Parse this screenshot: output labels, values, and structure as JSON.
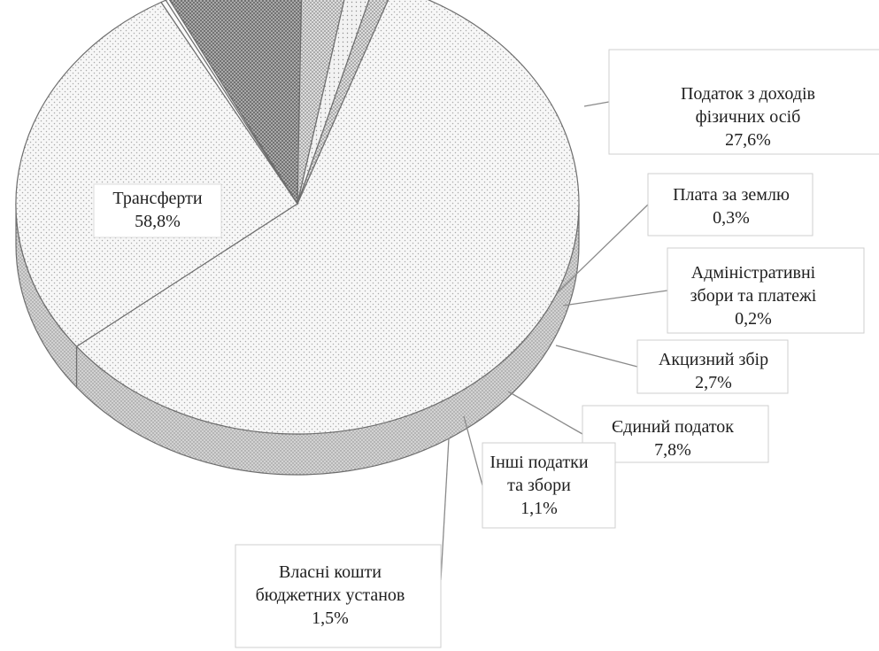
{
  "chart_data": {
    "type": "pie",
    "slices": [
      {
        "key": "transfers",
        "label_lines": [
          "Трансферти"
        ],
        "value_text": "58,8%",
        "value": 58.8,
        "pattern": "dots-light"
      },
      {
        "key": "pit",
        "label_lines": [
          "Податок з доходів",
          "фізичних осіб"
        ],
        "value_text": "27,6%",
        "value": 27.6,
        "pattern": "dots-light"
      },
      {
        "key": "land",
        "label_lines": [
          "Плата за землю"
        ],
        "value_text": "0,3%",
        "value": 0.3,
        "pattern": "plain"
      },
      {
        "key": "admin",
        "label_lines": [
          "Адміністративні",
          "збори та платежі"
        ],
        "value_text": "0,2%",
        "value": 0.2,
        "pattern": "plain"
      },
      {
        "key": "single",
        "label_lines": [
          "Єдиний податок"
        ],
        "value_text": "7,8%",
        "value": 7.8,
        "pattern": "dots-dark"
      },
      {
        "key": "excise",
        "label_lines": [
          "Акцизний збір"
        ],
        "value_text": "2,7%",
        "value": 2.7,
        "pattern": "dots-medium"
      },
      {
        "key": "own",
        "label_lines": [
          "Власні кошти",
          "бюджетних установ"
        ],
        "value_text": "1,5%",
        "value": 1.5,
        "pattern": "dots-sparse"
      },
      {
        "key": "other",
        "label_lines": [
          "Інші податки",
          "та збори"
        ],
        "value_text": "1,1%",
        "value": 1.1,
        "pattern": "dots-medium"
      }
    ],
    "style": "3d-pie",
    "legend": "none"
  }
}
